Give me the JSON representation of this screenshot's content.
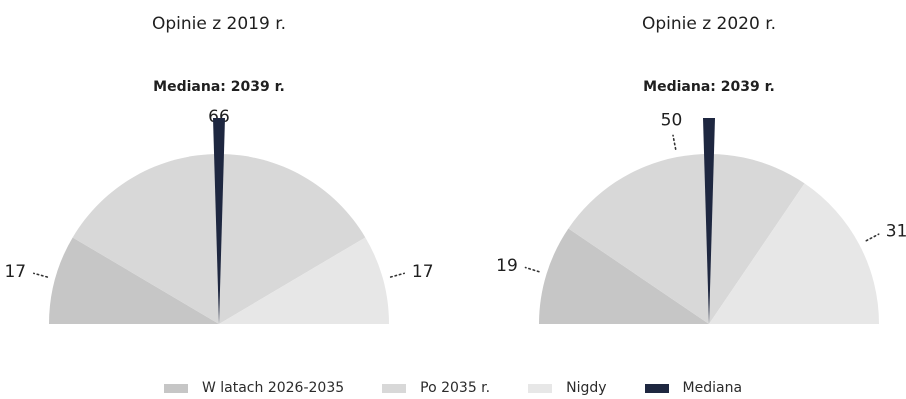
{
  "chart_data": {
    "type": "pie",
    "variant": "semicircle",
    "categories": [
      "W latach 2026-2035",
      "Po 2035 r.",
      "Nigdy"
    ],
    "colors": {
      "W latach 2026-2035": "#c6c6c6",
      "Po 2035 r.": "#d8d8d8",
      "Nigdy": "#e7e7e7",
      "Mediana": "#1e2740"
    },
    "charts": [
      {
        "title": "Opinie z 2019 r.",
        "median_label": "Mediana: 2039 r.",
        "values": [
          17,
          66,
          17
        ],
        "median_fraction": 0.5
      },
      {
        "title": "Opinie z 2020 r.",
        "median_label": "Mediana: 2039 r.",
        "values": [
          19,
          50,
          31
        ],
        "median_fraction": 0.5
      }
    ],
    "legend": [
      "W latach 2026-2035",
      "Po 2035 r.",
      "Nigdy",
      "Mediana"
    ],
    "legend_position": "bottom"
  }
}
